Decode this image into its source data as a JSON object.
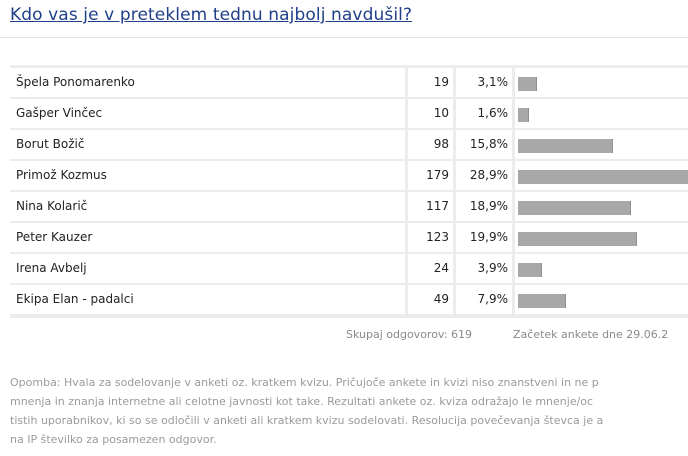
{
  "poll": {
    "title": "Kdo vas je v preteklem tednu najbolj navdušil?",
    "rows": [
      {
        "name": "Špela Ponomarenko",
        "votes": "19",
        "percent": "3,1%",
        "share": 3.1
      },
      {
        "name": "Gašper Vinčec",
        "votes": "10",
        "percent": "1,6%",
        "share": 1.6
      },
      {
        "name": "Borut Božič",
        "votes": "98",
        "percent": "15,8%",
        "share": 15.8
      },
      {
        "name": "Primož Kozmus",
        "votes": "179",
        "percent": "28,9%",
        "share": 28.9
      },
      {
        "name": "Nina Kolarič",
        "votes": "117",
        "percent": "18,9%",
        "share": 18.9
      },
      {
        "name": "Peter Kauzer",
        "votes": "123",
        "percent": "19,9%",
        "share": 19.9
      },
      {
        "name": "Irena Avbelj",
        "votes": "24",
        "percent": "3,9%",
        "share": 3.9
      },
      {
        "name": "Ekipa Elan - padalci",
        "votes": "49",
        "percent": "7,9%",
        "share": 7.9
      }
    ],
    "total_label": "Skupaj odgovorov: 619",
    "start_label": "Začetek ankete dne 29.06.2",
    "note": "Opomba: Hvala za sodelovanje v anketi oz. kratkem kvizu. Pričujoče ankete in kvizi niso znanstveni in ne p\nmnenja in znanja internetne ali celotne javnosti kot take. Rezultati ankete oz. kviza odražajo le mnenje/oc\ntistih uporabnikov, ki so se odločili v anketi ali kratkem kvizu sodelovati. Resolucija povečevanja števca je a\nna IP številko za posamezen odgovor."
  },
  "colors": {
    "title": "#1f3f88",
    "bar": "#a8a8a8",
    "table_background": "#ececec",
    "muted_text": "#9a9a9a"
  }
}
